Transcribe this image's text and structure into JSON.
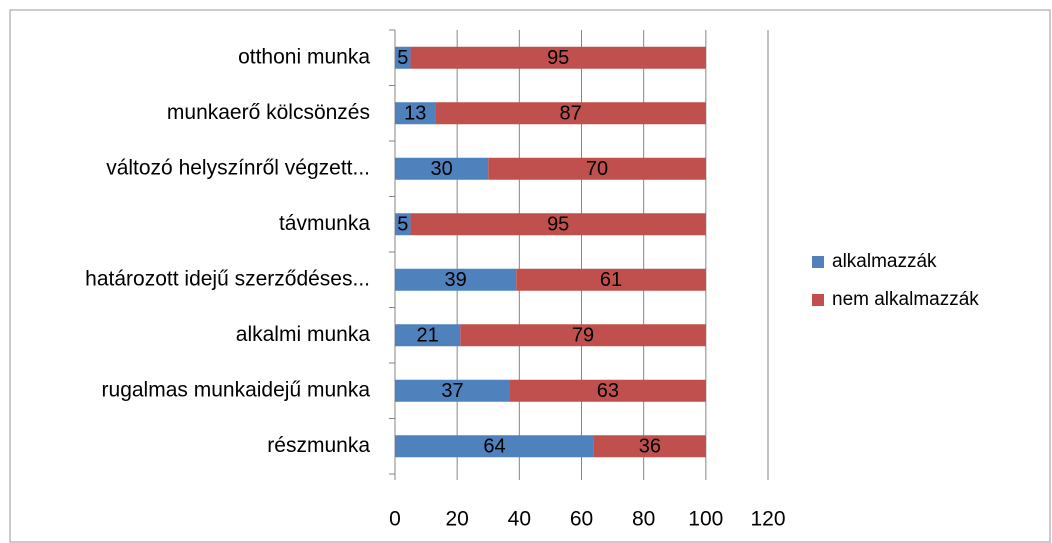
{
  "chart_data": {
    "type": "stacked_barh",
    "categories": [
      "otthoni munka",
      "munkaerő kölcsönzés",
      "változó helyszínről végzett...",
      "távmunka",
      "határozott idejű szerződéses...",
      "alkalmi munka",
      "rugalmas munkaidejű munka",
      "részmunka"
    ],
    "series": [
      {
        "name": "alkalmazzák",
        "color": "#4f81bd",
        "values": [
          5,
          13,
          30,
          5,
          39,
          21,
          37,
          64
        ]
      },
      {
        "name": "nem alkalmazzák",
        "color": "#c0504d",
        "values": [
          95,
          87,
          70,
          95,
          61,
          79,
          63,
          36
        ]
      }
    ],
    "xlim": [
      0,
      120
    ],
    "xticks": [
      0,
      20,
      40,
      60,
      80,
      100,
      120
    ],
    "grid": true,
    "legend": "right"
  }
}
